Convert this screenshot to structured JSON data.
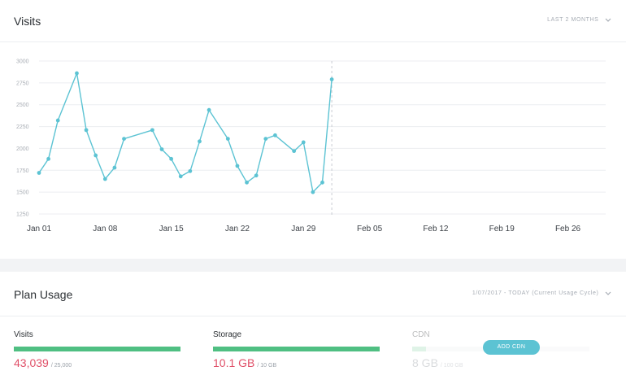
{
  "visits_card": {
    "title": "Visits",
    "range_selector": {
      "label": "LAST 2 MONTHS",
      "icon": "chevron-down-icon"
    }
  },
  "colors": {
    "line": "#5cc3d3",
    "accent_button": "#5cc3d3",
    "meter_fill": "#4fbf82",
    "used_value": "#e05068"
  },
  "chart_data": {
    "type": "line",
    "title": "",
    "xlabel": "",
    "ylabel": "",
    "ylim": [
      1250,
      3000
    ],
    "yticks": [
      "3000",
      "2750",
      "2500",
      "2250",
      "2000",
      "1750",
      "1500",
      "1250"
    ],
    "xticks": [
      "Jan 01",
      "Jan 08",
      "Jan 15",
      "Jan 22",
      "Jan 29",
      "Feb 05",
      "Feb 12",
      "Feb 19",
      "Feb 26"
    ],
    "x_start": "Jan 01",
    "x_end": "Mar 02",
    "grid": true,
    "today_marker": "Feb 01",
    "series": [
      {
        "values": [
          {
            "x": "Jan 01",
            "y": 1720
          },
          {
            "x": "Jan 02",
            "y": 1880
          },
          {
            "x": "Jan 03",
            "y": 2320
          },
          {
            "x": "Jan 05",
            "y": 2860
          },
          {
            "x": "Jan 06",
            "y": 2210
          },
          {
            "x": "Jan 07",
            "y": 1920
          },
          {
            "x": "Jan 08",
            "y": 1650
          },
          {
            "x": "Jan 09",
            "y": 1780
          },
          {
            "x": "Jan 10",
            "y": 2110
          },
          {
            "x": "Jan 13",
            "y": 2210
          },
          {
            "x": "Jan 14",
            "y": 1990
          },
          {
            "x": "Jan 15",
            "y": 1880
          },
          {
            "x": "Jan 16",
            "y": 1680
          },
          {
            "x": "Jan 17",
            "y": 1740
          },
          {
            "x": "Jan 18",
            "y": 2080
          },
          {
            "x": "Jan 19",
            "y": 2440
          },
          {
            "x": "Jan 21",
            "y": 2110
          },
          {
            "x": "Jan 22",
            "y": 1800
          },
          {
            "x": "Jan 23",
            "y": 1610
          },
          {
            "x": "Jan 24",
            "y": 1690
          },
          {
            "x": "Jan 25",
            "y": 2110
          },
          {
            "x": "Jan 26",
            "y": 2150
          },
          {
            "x": "Jan 28",
            "y": 1970
          },
          {
            "x": "Jan 29",
            "y": 2070
          },
          {
            "x": "Jan 30",
            "y": 1500
          },
          {
            "x": "Jan 31",
            "y": 1610
          },
          {
            "x": "Feb 01",
            "y": 2790
          }
        ]
      }
    ]
  },
  "plan_usage": {
    "title": "Plan Usage",
    "cycle_selector": {
      "range": "1/07/2017 - TODAY",
      "note": "(Current Usage Cycle)",
      "icon": "chevron-down-icon"
    },
    "meters": [
      {
        "label": "Visits",
        "used": "43,039",
        "limit": "/ 25,000",
        "fill_fraction": 1.0
      },
      {
        "label": "Storage",
        "used": "10.1 GB",
        "limit": "/ 10 GB",
        "fill_fraction": 1.0
      },
      {
        "label": "CDN",
        "used": "8 GB",
        "limit": "/ 100 GB",
        "fill_fraction": 0.08
      }
    ],
    "add_cdn_button": "ADD CDN"
  }
}
